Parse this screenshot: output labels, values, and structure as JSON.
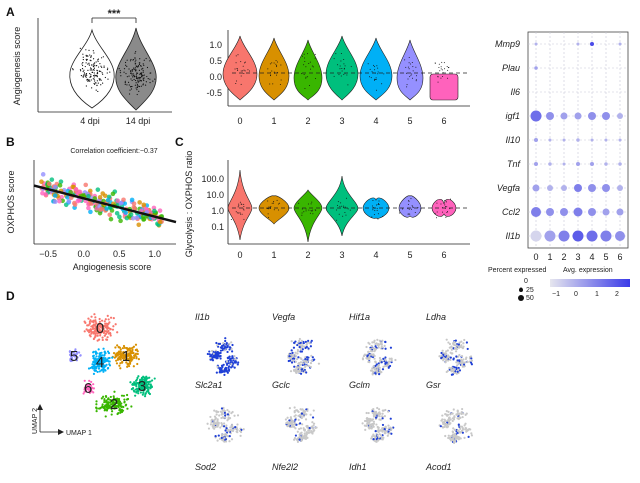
{
  "panels": {
    "a": "A",
    "b": "B",
    "c": "C",
    "d": "D"
  },
  "panel_a_left": {
    "ylabel": "Angiogenesis score",
    "groups": [
      "4 dpi",
      "14 dpi"
    ],
    "significance": "***",
    "colors": [
      "#ffffff",
      "#808080"
    ]
  },
  "panel_a_mid": {
    "clusters": [
      "0",
      "1",
      "2",
      "3",
      "4",
      "5",
      "6"
    ],
    "yticks": [
      "1.0",
      "0.5",
      "0.0",
      "-0.5"
    ],
    "colors": [
      "#f8766d",
      "#d89000",
      "#39b600",
      "#00bf7d",
      "#00b0f6",
      "#9590ff",
      "#ff62bc"
    ]
  },
  "dotplot": {
    "genes": [
      "Mmp9",
      "Plau",
      "Il6",
      "igf1",
      "Il10",
      "Tnf",
      "Vegfa",
      "Ccl2",
      "Il1b"
    ],
    "clusters": [
      "0",
      "1",
      "2",
      "3",
      "4",
      "5",
      "6"
    ],
    "legend": {
      "percent_title": "Percent expressed",
      "percent_values": [
        "0",
        "25",
        "50"
      ],
      "avg_title": "Avg. expression",
      "avg_ticks": [
        "−1",
        "0",
        "1",
        "2"
      ]
    }
  },
  "chart_data": [
    {
      "type": "scatter",
      "panel": "B",
      "title": "Correlation coefficient:−0.37",
      "xlabel": "Angiogenesis score",
      "ylabel": "OXPHOS score",
      "xticks": [
        "−0.5",
        "0.0",
        "0.5",
        "1.0"
      ],
      "xlim": [
        -0.7,
        1.3
      ],
      "ylim": [
        -0.25,
        0.9
      ],
      "trend": {
        "x": [
          -0.7,
          1.3
        ],
        "y": [
          0.55,
          0.05
        ]
      }
    },
    {
      "type": "violin",
      "panel": "C",
      "ylabel": "Glycolysis : OXPHOS ratio",
      "categories": [
        "0",
        "1",
        "2",
        "3",
        "4",
        "5",
        "6"
      ],
      "yticks": [
        "100.0",
        "10.0",
        "1.0",
        "0.1"
      ],
      "yscale": "log",
      "reference": 1.5
    }
  ],
  "umap": {
    "clusters": [
      "0",
      "1",
      "2",
      "3",
      "4",
      "5",
      "6"
    ],
    "axis1": "UMAP 1",
    "axis2": "UMAP 2"
  },
  "feature_genes": [
    [
      "Il1b",
      "Vegfa",
      "Hif1a",
      "Ldha"
    ],
    [
      "Slc2a1",
      "Gclc",
      "Gclm",
      "Gsr"
    ],
    [
      "Sod2",
      "Nfe2l2",
      "Idh1",
      "Acod1"
    ]
  ]
}
